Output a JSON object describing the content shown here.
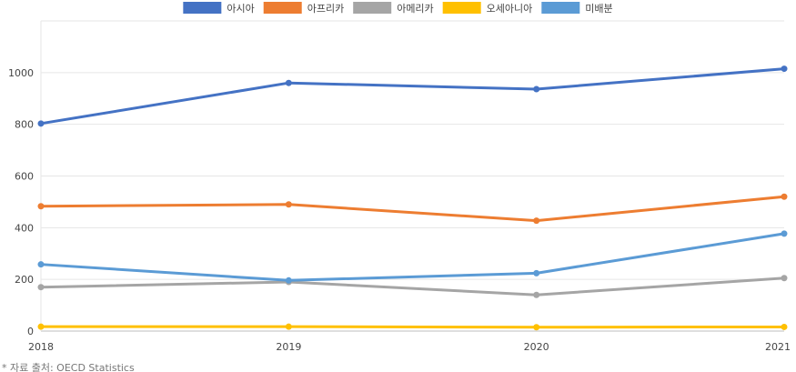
{
  "chart_data": {
    "type": "line",
    "x": [
      "2018",
      "2019",
      "2020",
      "2021"
    ],
    "ylim": [
      0,
      1200
    ],
    "yticks": [
      0,
      200,
      400,
      600,
      800,
      1000
    ],
    "grid": true,
    "legend_position": "top",
    "series": [
      {
        "name": "아시아",
        "color": "#4472C4",
        "values": [
          803,
          960,
          936,
          1015
        ]
      },
      {
        "name": "아프리카",
        "color": "#ED7D31",
        "values": [
          483,
          490,
          427,
          520
        ]
      },
      {
        "name": "아메리카",
        "color": "#A5A5A5",
        "values": [
          170,
          190,
          140,
          205
        ]
      },
      {
        "name": "오세아니아",
        "color": "#FFC000",
        "values": [
          17,
          17,
          15,
          16
        ]
      },
      {
        "name": "미배분",
        "color": "#5B9BD5",
        "values": [
          258,
          196,
          224,
          377
        ]
      }
    ]
  },
  "source_note": "* 자료 출처: OECD Statistics"
}
